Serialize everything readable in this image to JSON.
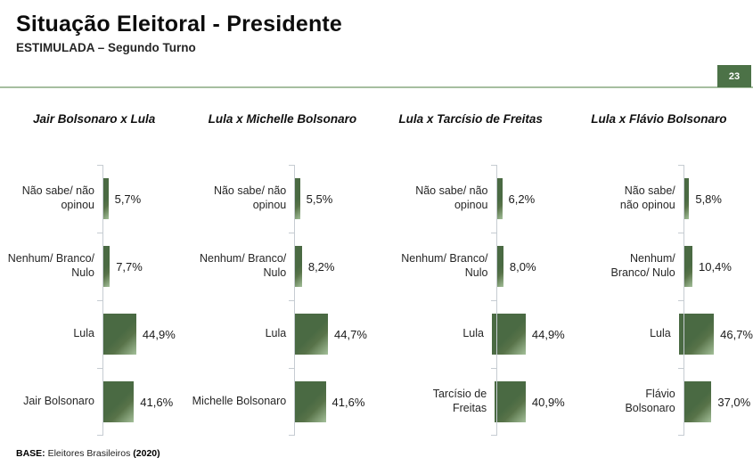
{
  "header": {
    "title": "Situação Eleitoral - Presidente",
    "subtitle": "ESTIMULADA – Segundo Turno",
    "page_number": "23"
  },
  "footer": {
    "base_label": "BASE:",
    "base_text": " Eleitores Brasileiros ",
    "base_year": "(2020)"
  },
  "colors": {
    "accent_green": "#4c7247",
    "bar_dark": "#4a6a43",
    "bar_light": "#a4c09a",
    "divider_green": "#a6bfa0",
    "axis_gray": "#c6ccd2"
  },
  "chart_data": [
    {
      "type": "bar",
      "orientation": "horizontal",
      "title": "Jair Bolsonaro x Lula",
      "categories": [
        "Não sabe/ não opinou",
        "Nenhum/ Branco/ Nulo",
        "Lula",
        "Jair Bolsonaro"
      ],
      "values": [
        5.7,
        7.7,
        44.9,
        41.6
      ],
      "value_labels": [
        "5,7%",
        "7,7%",
        "44,9%",
        "41,6%"
      ],
      "xlim": [
        0,
        50
      ],
      "grid": false,
      "legend": false
    },
    {
      "type": "bar",
      "orientation": "horizontal",
      "title": "Lula x Michelle Bolsonaro",
      "categories": [
        "Não sabe/ não opinou",
        "Nenhum/ Branco/ Nulo",
        "Lula",
        "Michelle Bolsonaro"
      ],
      "values": [
        5.5,
        8.2,
        44.7,
        41.6
      ],
      "value_labels": [
        "5,5%",
        "8,2%",
        "44,7%",
        "41,6%"
      ],
      "xlim": [
        0,
        50
      ],
      "grid": false,
      "legend": false
    },
    {
      "type": "bar",
      "orientation": "horizontal",
      "title": "Lula x Tarcísio de Freitas",
      "categories": [
        "Não sabe/ não opinou",
        "Nenhum/ Branco/ Nulo",
        "Lula",
        "Tarcísio de Freitas"
      ],
      "values": [
        6.2,
        8.0,
        44.9,
        40.9
      ],
      "value_labels": [
        "6,2%",
        "8,0%",
        "44,9%",
        "40,9%"
      ],
      "xlim": [
        0,
        50
      ],
      "grid": false,
      "legend": false
    },
    {
      "type": "bar",
      "orientation": "horizontal",
      "title": "Lula x Flávio Bolsonaro",
      "categories": [
        "Não sabe/ não opinou",
        "Nenhum/ Branco/ Nulo",
        "Lula",
        "Flávio Bolsonaro"
      ],
      "values": [
        5.8,
        10.4,
        46.7,
        37.0
      ],
      "value_labels": [
        "5,8%",
        "10,4%",
        "46,7%",
        "37,0%"
      ],
      "xlim": [
        0,
        50
      ],
      "grid": false,
      "legend": false
    }
  ]
}
